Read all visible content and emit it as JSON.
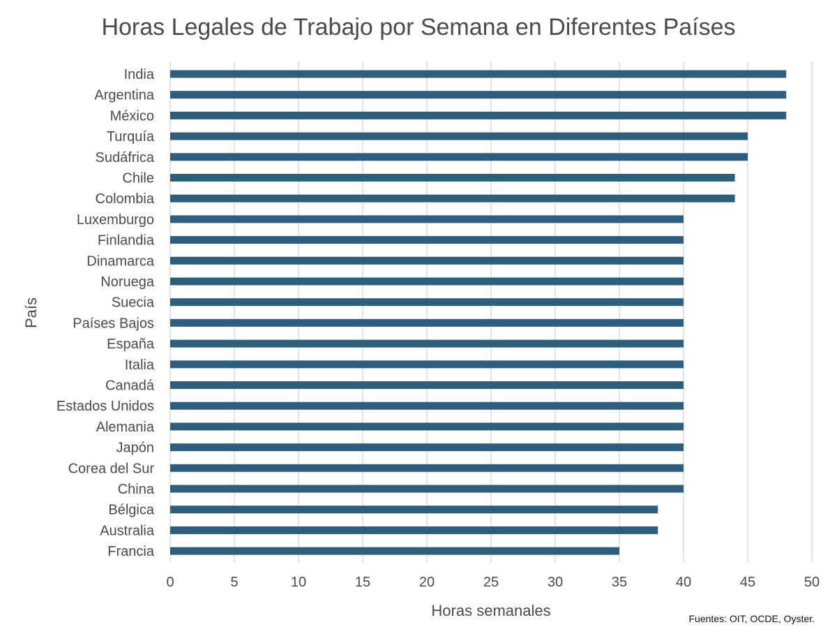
{
  "chart_data": {
    "type": "bar",
    "orientation": "horizontal",
    "title": "Horas Legales de Trabajo por Semana en Diferentes Países",
    "xlabel": "Horas semanales",
    "ylabel": "País",
    "source": "Fuentes: OIT, OCDE, Oyster.",
    "xlim": [
      0,
      50
    ],
    "xticks": [
      0,
      5,
      10,
      15,
      20,
      25,
      30,
      35,
      40,
      45,
      50
    ],
    "grid": true,
    "bar_color": "#2e5e7e",
    "categories": [
      "India",
      "Argentina",
      "México",
      "Turquía",
      "Sudáfrica",
      "Chile",
      "Colombia",
      "Luxemburgo",
      "Finlandia",
      "Dinamarca",
      "Noruega",
      "Suecia",
      "Países Bajos",
      "España",
      "Italia",
      "Canadá",
      "Estados Unidos",
      "Alemania",
      "Japón",
      "Corea del Sur",
      "China",
      "Bélgica",
      "Australia",
      "Francia"
    ],
    "values": [
      48,
      48,
      48,
      45,
      45,
      44,
      44,
      40,
      40,
      40,
      40,
      40,
      40,
      40,
      40,
      40,
      40,
      40,
      40,
      40,
      40,
      38,
      38,
      35
    ]
  }
}
